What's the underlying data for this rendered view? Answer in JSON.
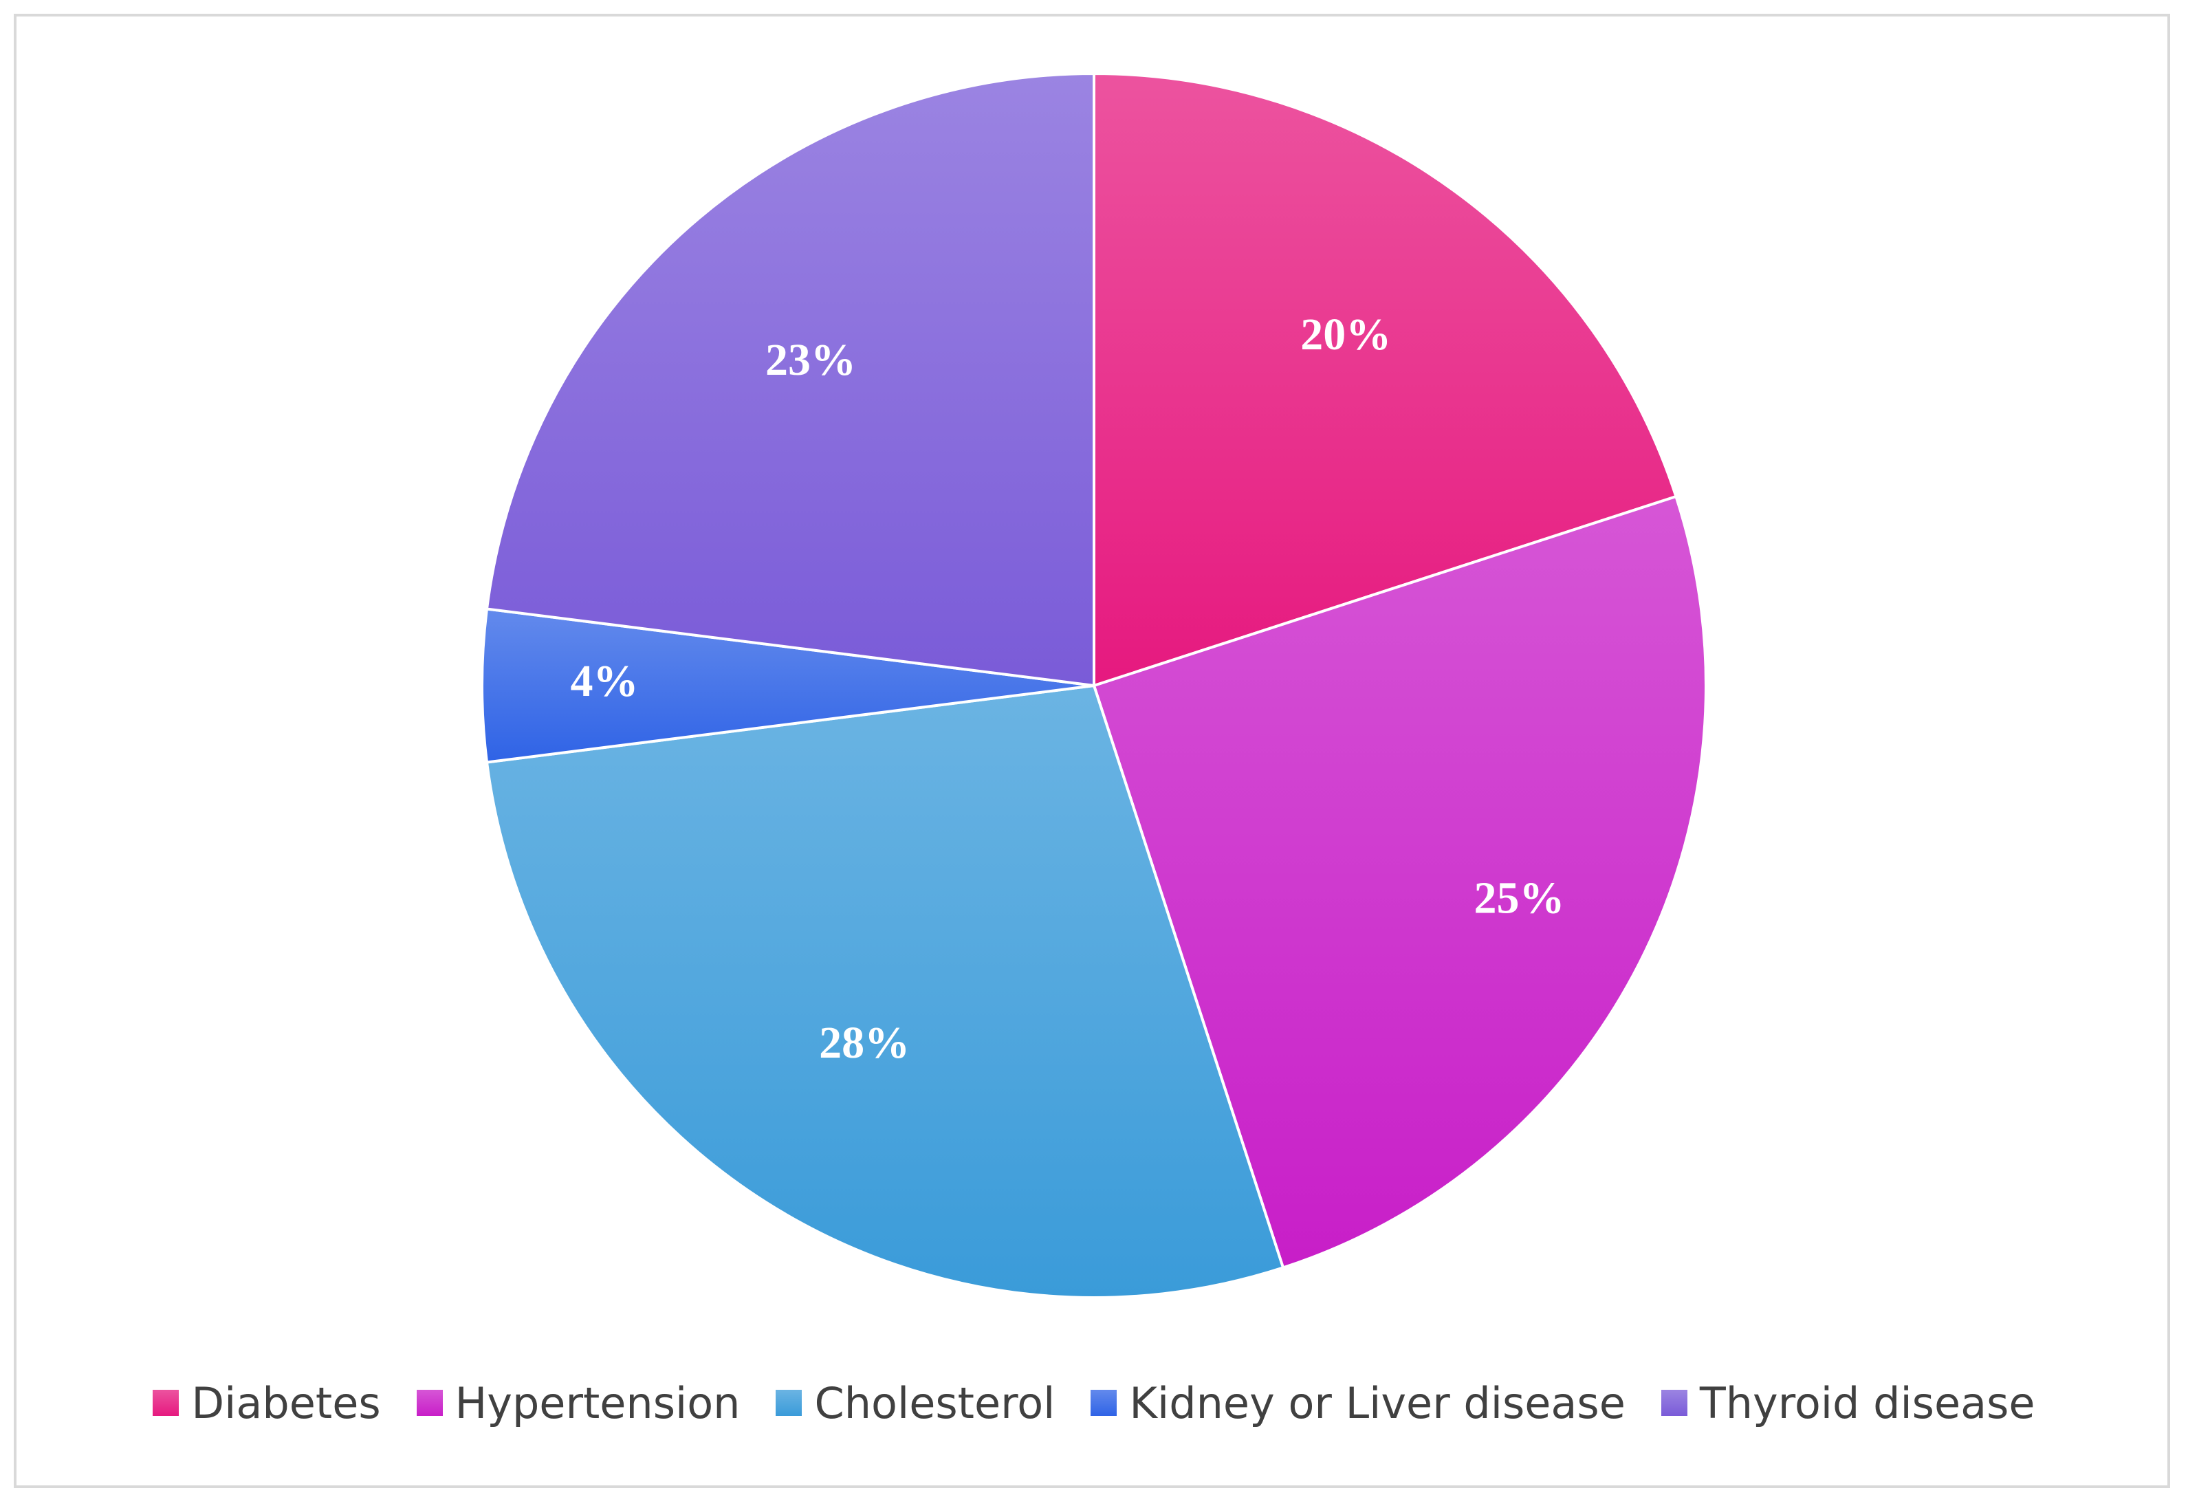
{
  "chart_data": {
    "type": "pie",
    "categories": [
      "Diabetes",
      "Hypertension",
      "Cholesterol",
      "Kidney or Liver disease",
      "Thyroid disease"
    ],
    "values": [
      20,
      25,
      28,
      4,
      23
    ],
    "data_labels": [
      "20%",
      "25%",
      "28%",
      "4%",
      "23%"
    ],
    "colors": [
      "#e6197f",
      "#c81ec8",
      "#3a9bd9",
      "#2f63e6",
      "#7a5bd8"
    ],
    "legend_position": "bottom",
    "title": ""
  }
}
